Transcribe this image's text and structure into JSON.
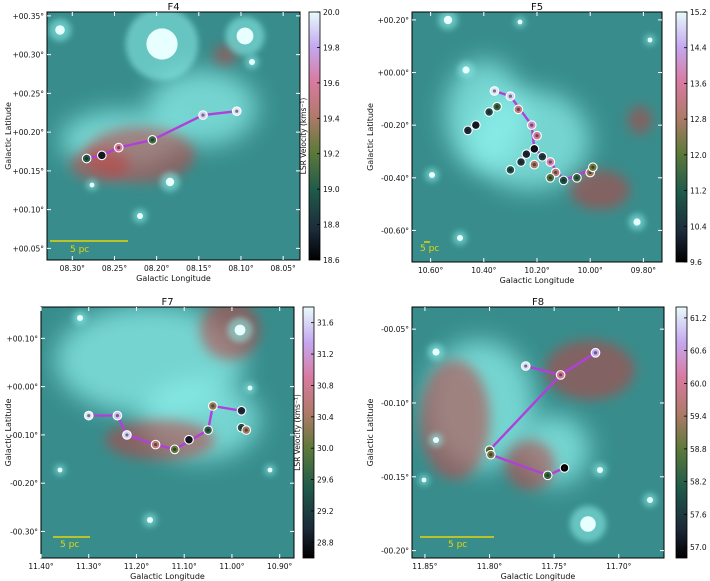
{
  "chart_data": [
    {
      "type": "scatter",
      "title": "F4",
      "xlabel": "Galactic Longitude",
      "ylabel": "Galactic Latitude",
      "xlim": [
        8.33,
        8.03
      ],
      "ylim": [
        0.035,
        0.355
      ],
      "xticks": [
        8.3,
        8.25,
        8.2,
        8.15,
        8.1,
        8.05
      ],
      "xtick_labels": [
        "08.30°",
        "08.25°",
        "08.20°",
        "08.15°",
        "08.10°",
        "08.05°"
      ],
      "yticks": [
        0.05,
        0.1,
        0.15,
        0.2,
        0.25,
        0.3,
        0.35
      ],
      "ytick_labels": [
        "+00.05°",
        "+00.10°",
        "+00.15°",
        "+00.20°",
        "+00.25°",
        "+00.30°",
        "+00.35°"
      ],
      "scalebar_label": "5 pc",
      "colorbar": {
        "label": "LSR Velocity (kms⁻¹)",
        "min": 18.6,
        "max": 20.0,
        "ticks": [
          "20.0",
          "19.8",
          "19.6",
          "19.4",
          "19.2",
          "19.0",
          "18.8",
          "18.6"
        ],
        "tick_values": [
          20.0,
          19.8,
          19.6,
          19.4,
          19.2,
          19.0,
          18.8,
          18.6
        ]
      },
      "spine": [
        [
          8.283,
          0.166
        ],
        [
          8.265,
          0.17
        ],
        [
          8.245,
          0.18
        ],
        [
          8.205,
          0.19
        ],
        [
          8.145,
          0.222
        ],
        [
          8.105,
          0.227
        ]
      ],
      "points": [
        {
          "x": 8.283,
          "y": 0.166,
          "v": 19.0
        },
        {
          "x": 8.265,
          "y": 0.17,
          "v": 18.7
        },
        {
          "x": 8.245,
          "y": 0.18,
          "v": 19.6
        },
        {
          "x": 8.205,
          "y": 0.19,
          "v": 19.1
        },
        {
          "x": 8.145,
          "y": 0.222,
          "v": 19.9
        },
        {
          "x": 8.105,
          "y": 0.227,
          "v": 19.95
        }
      ]
    },
    {
      "type": "scatter",
      "title": "F5",
      "xlabel": "Galactic Longitude",
      "ylabel": "Galactic Latitude",
      "xlim": [
        10.67,
        9.73
      ],
      "ylim": [
        -0.72,
        0.23
      ],
      "xticks": [
        10.6,
        10.4,
        10.2,
        10.0,
        9.8
      ],
      "xtick_labels": [
        "10.60°",
        "10.40°",
        "10.20°",
        "10.00°",
        "09.80°"
      ],
      "yticks": [
        -0.6,
        -0.4,
        -0.2,
        0.0,
        0.2
      ],
      "ytick_labels": [
        "-00.60°",
        "-00.40°",
        "-00.20°",
        "+00.00°",
        "+00.20°"
      ],
      "scalebar_label": "5 pc",
      "colorbar": {
        "label": "",
        "min": 9.6,
        "max": 15.2,
        "ticks": [
          "15.2",
          "14.4",
          "13.6",
          "12.8",
          "12.0",
          "11.2",
          "10.4",
          "9.6"
        ],
        "tick_values": [
          15.2,
          14.4,
          13.6,
          12.8,
          12.0,
          11.2,
          10.4,
          9.6
        ]
      },
      "spine": [
        [
          10.36,
          -0.07
        ],
        [
          10.3,
          -0.09
        ],
        [
          10.22,
          -0.2
        ],
        [
          10.21,
          -0.29
        ],
        [
          10.15,
          -0.34
        ],
        [
          10.1,
          -0.41
        ],
        [
          10.0,
          -0.37
        ]
      ],
      "points": [
        {
          "x": 10.36,
          "y": -0.07,
          "v": 15.0
        },
        {
          "x": 10.35,
          "y": -0.13,
          "v": 11.5
        },
        {
          "x": 10.38,
          "y": -0.15,
          "v": 10.8
        },
        {
          "x": 10.3,
          "y": -0.09,
          "v": 14.8
        },
        {
          "x": 10.27,
          "y": -0.14,
          "v": 13.2
        },
        {
          "x": 10.22,
          "y": -0.2,
          "v": 14.0
        },
        {
          "x": 10.2,
          "y": -0.24,
          "v": 13.5
        },
        {
          "x": 10.46,
          "y": -0.22,
          "v": 10.3
        },
        {
          "x": 10.43,
          "y": -0.2,
          "v": 10.0
        },
        {
          "x": 10.3,
          "y": -0.37,
          "v": 11.0
        },
        {
          "x": 10.26,
          "y": -0.34,
          "v": 10.5
        },
        {
          "x": 10.24,
          "y": -0.31,
          "v": 10.2
        },
        {
          "x": 10.21,
          "y": -0.29,
          "v": 9.8
        },
        {
          "x": 10.21,
          "y": -0.35,
          "v": 12.8
        },
        {
          "x": 10.18,
          "y": -0.32,
          "v": 10.6
        },
        {
          "x": 10.15,
          "y": -0.34,
          "v": 13.8
        },
        {
          "x": 10.13,
          "y": -0.38,
          "v": 13.0
        },
        {
          "x": 10.15,
          "y": -0.4,
          "v": 11.8
        },
        {
          "x": 10.1,
          "y": -0.41,
          "v": 11.0
        },
        {
          "x": 10.05,
          "y": -0.4,
          "v": 11.4
        },
        {
          "x": 10.0,
          "y": -0.38,
          "v": 12.6
        },
        {
          "x": 9.99,
          "y": -0.36,
          "v": 12.2
        }
      ]
    },
    {
      "type": "scatter",
      "title": "F7",
      "xlabel": "Galactic Longitude",
      "ylabel": "Galactic Latitude",
      "xlim": [
        11.4,
        10.87
      ],
      "ylim": [
        -0.355,
        0.165
      ],
      "xticks": [
        11.4,
        11.3,
        11.2,
        11.1,
        11.0,
        10.9
      ],
      "xtick_labels": [
        "11.40°",
        "11.30°",
        "11.20°",
        "11.10°",
        "11.00°",
        "10.90°"
      ],
      "yticks": [
        -0.3,
        -0.2,
        -0.1,
        0.0,
        0.1
      ],
      "ytick_labels": [
        "-00.30°",
        "-00.20°",
        "-00.10°",
        "+00.00°",
        "+00.10°"
      ],
      "scalebar_label": "5 pc",
      "colorbar": {
        "label": "LSR Velocity (kms⁻¹)",
        "min": 28.6,
        "max": 31.8,
        "ticks": [
          "31.6",
          "31.2",
          "30.8",
          "30.4",
          "30.0",
          "29.6",
          "29.2",
          "28.8"
        ],
        "tick_values": [
          31.6,
          31.2,
          30.8,
          30.4,
          30.0,
          29.6,
          29.2,
          28.8
        ]
      },
      "spine": [
        [
          11.3,
          -0.06
        ],
        [
          11.24,
          -0.06
        ],
        [
          11.22,
          -0.1
        ],
        [
          11.16,
          -0.12
        ],
        [
          11.12,
          -0.13
        ],
        [
          11.05,
          -0.09
        ],
        [
          11.04,
          -0.04
        ],
        [
          10.98,
          -0.05
        ]
      ],
      "points": [
        {
          "x": 11.3,
          "y": -0.06,
          "v": 31.7
        },
        {
          "x": 11.24,
          "y": -0.06,
          "v": 31.5
        },
        {
          "x": 11.22,
          "y": -0.1,
          "v": 31.6
        },
        {
          "x": 11.16,
          "y": -0.12,
          "v": 30.6
        },
        {
          "x": 11.12,
          "y": -0.13,
          "v": 30.0
        },
        {
          "x": 11.09,
          "y": -0.11,
          "v": 28.8
        },
        {
          "x": 11.05,
          "y": -0.09,
          "v": 29.6
        },
        {
          "x": 11.04,
          "y": -0.04,
          "v": 30.3
        },
        {
          "x": 10.98,
          "y": -0.05,
          "v": 29.0
        },
        {
          "x": 10.98,
          "y": -0.085,
          "v": 29.4
        },
        {
          "x": 10.97,
          "y": -0.09,
          "v": 30.4
        }
      ]
    },
    {
      "type": "scatter",
      "title": "F8",
      "xlabel": "Galactic Longitude",
      "ylabel": "Galactic Latitude",
      "xlim": [
        11.86,
        11.665
      ],
      "ylim": [
        -0.205,
        -0.035
      ],
      "xticks": [
        11.85,
        11.8,
        11.75,
        11.7
      ],
      "xtick_labels": [
        "11.85°",
        "11.80°",
        "11.75°",
        "11.70°"
      ],
      "yticks": [
        -0.2,
        -0.15,
        -0.1,
        -0.05
      ],
      "ytick_labels": [
        "-00.20°",
        "-00.15°",
        "-00.10°",
        "-00.05°"
      ],
      "scalebar_label": "5 pc",
      "colorbar": {
        "label": "",
        "min": 56.8,
        "max": 61.4,
        "ticks": [
          "61.2",
          "60.6",
          "60.0",
          "59.4",
          "58.8",
          "58.2",
          "57.6",
          "57.0"
        ],
        "tick_values": [
          61.2,
          60.6,
          60.0,
          59.4,
          58.8,
          58.2,
          57.6,
          57.0
        ]
      },
      "spine": [
        [
          11.8,
          -0.132
        ],
        [
          11.799,
          -0.135
        ],
        [
          11.755,
          -0.149
        ],
        [
          11.742,
          -0.144
        ]
      ],
      "spine2": [
        [
          11.8,
          -0.132
        ],
        [
          11.745,
          -0.081
        ],
        [
          11.718,
          -0.066
        ]
      ],
      "branch": [
        [
          11.772,
          -0.075
        ],
        [
          11.745,
          -0.081
        ]
      ],
      "points": [
        {
          "x": 11.8,
          "y": -0.132,
          "v": 58.6
        },
        {
          "x": 11.799,
          "y": -0.135,
          "v": 59.0
        },
        {
          "x": 11.755,
          "y": -0.149,
          "v": 58.4
        },
        {
          "x": 11.742,
          "y": -0.144,
          "v": 56.8
        },
        {
          "x": 11.772,
          "y": -0.075,
          "v": 61.2
        },
        {
          "x": 11.745,
          "y": -0.081,
          "v": 60.0
        },
        {
          "x": 11.718,
          "y": -0.066,
          "v": 60.8
        }
      ]
    }
  ]
}
